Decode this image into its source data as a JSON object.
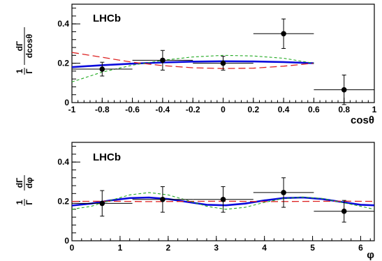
{
  "chart_data": [
    {
      "type": "scatter",
      "title": "LHCb",
      "xlabel": "cosθ",
      "ylabel_num": "1",
      "ylabel_den": "Γ",
      "ylabel_main_num": "dΓ",
      "ylabel_main_den": "dcosθ",
      "xlim": [
        -1,
        1
      ],
      "ylim": [
        0,
        0.5
      ],
      "xticks": [
        -1,
        -0.8,
        -0.6,
        -0.4,
        -0.2,
        0,
        0.2,
        0.4,
        0.6,
        0.8,
        1
      ],
      "xtick_labels": [
        "-1",
        "-0.8",
        "-0.6",
        "-0.4",
        "-0.2",
        "0",
        "0.2",
        "0.4",
        "0.6",
        "0.8",
        "1"
      ],
      "yticks": [
        0,
        0.2,
        0.4
      ],
      "ytick_labels": [
        "0",
        "0.2",
        "0.4"
      ],
      "grid": false,
      "points": [
        {
          "x": -0.8,
          "y": 0.17,
          "xerr": 0.2,
          "yerr": 0.035
        },
        {
          "x": -0.4,
          "y": 0.215,
          "xerr": 0.2,
          "yerr": 0.05
        },
        {
          "x": 0.0,
          "y": 0.2,
          "xerr": 0.2,
          "yerr": 0.035
        },
        {
          "x": 0.4,
          "y": 0.35,
          "xerr": 0.2,
          "yerr": 0.075
        },
        {
          "x": 0.8,
          "y": 0.065,
          "xerr": 0.2,
          "yerr": 0.075
        }
      ],
      "curves": [
        {
          "style": "solid",
          "color": "#0a0adc",
          "x": [
            -1,
            -0.8,
            -0.6,
            -0.4,
            -0.2,
            0,
            0.2,
            0.4,
            0.6
          ],
          "y": [
            0.18,
            0.19,
            0.198,
            0.204,
            0.208,
            0.21,
            0.209,
            0.206,
            0.2
          ]
        },
        {
          "style": "dashed",
          "color": "#dd2222",
          "x": [
            -1,
            -0.8,
            -0.6,
            -0.4,
            -0.2,
            0,
            0.2,
            0.4,
            0.6
          ],
          "y": [
            0.255,
            0.23,
            0.205,
            0.188,
            0.177,
            0.173,
            0.175,
            0.185,
            0.2
          ]
        },
        {
          "style": "dotted",
          "color": "#22aa22",
          "x": [
            -1,
            -0.8,
            -0.6,
            -0.4,
            -0.2,
            0,
            0.2,
            0.4,
            0.6
          ],
          "y": [
            0.105,
            0.155,
            0.19,
            0.215,
            0.232,
            0.24,
            0.237,
            0.225,
            0.2
          ]
        }
      ]
    },
    {
      "type": "scatter",
      "title": "LHCb",
      "xlabel": "φ",
      "ylabel_num": "1",
      "ylabel_den": "Γ",
      "ylabel_main_num": "dΓ",
      "ylabel_main_den": "dφ",
      "xlim": [
        0,
        6.2832
      ],
      "ylim": [
        0,
        0.5
      ],
      "xticks": [
        0,
        1,
        2,
        3,
        4,
        5,
        6
      ],
      "xtick_labels": [
        "0",
        "1",
        "2",
        "3",
        "4",
        "5",
        "6"
      ],
      "yticks": [
        0,
        0.2,
        0.4
      ],
      "ytick_labels": [
        "0",
        "0.2",
        "0.4"
      ],
      "grid": false,
      "points": [
        {
          "x": 0.628,
          "y": 0.19,
          "xerr": 0.628,
          "yerr": 0.065
        },
        {
          "x": 1.885,
          "y": 0.21,
          "xerr": 0.628,
          "yerr": 0.065
        },
        {
          "x": 3.142,
          "y": 0.21,
          "xerr": 0.628,
          "yerr": 0.065
        },
        {
          "x": 4.398,
          "y": 0.245,
          "xerr": 0.628,
          "yerr": 0.075
        },
        {
          "x": 5.655,
          "y": 0.15,
          "xerr": 0.628,
          "yerr": 0.055
        }
      ],
      "curves": [
        {
          "style": "solid",
          "color": "#0a0adc",
          "x": [
            0,
            0.4,
            0.8,
            1.2,
            1.6,
            2.0,
            2.4,
            2.8,
            3.2,
            3.6,
            4.0,
            4.4,
            4.8,
            5.2,
            5.6,
            6.0,
            6.28
          ],
          "y": [
            0.179,
            0.189,
            0.205,
            0.217,
            0.22,
            0.212,
            0.197,
            0.183,
            0.18,
            0.189,
            0.205,
            0.217,
            0.22,
            0.212,
            0.197,
            0.183,
            0.18
          ]
        },
        {
          "style": "dashed",
          "color": "#dd2222",
          "x": [
            0,
            0.8,
            1.6,
            2.4,
            3.2,
            4.0,
            4.8,
            5.6,
            6.28
          ],
          "y": [
            0.2,
            0.201,
            0.199,
            0.2,
            0.201,
            0.199,
            0.2,
            0.201,
            0.2
          ]
        },
        {
          "style": "dotted",
          "color": "#22aa22",
          "x": [
            0,
            0.4,
            0.8,
            1.2,
            1.6,
            2.0,
            2.4,
            2.8,
            3.2,
            3.6,
            4.0,
            4.4,
            4.8,
            5.2,
            5.6,
            6.0,
            6.28
          ],
          "y": [
            0.16,
            0.175,
            0.205,
            0.233,
            0.245,
            0.233,
            0.205,
            0.175,
            0.16,
            0.17,
            0.195,
            0.215,
            0.222,
            0.215,
            0.195,
            0.175,
            0.16
          ]
        }
      ]
    }
  ]
}
